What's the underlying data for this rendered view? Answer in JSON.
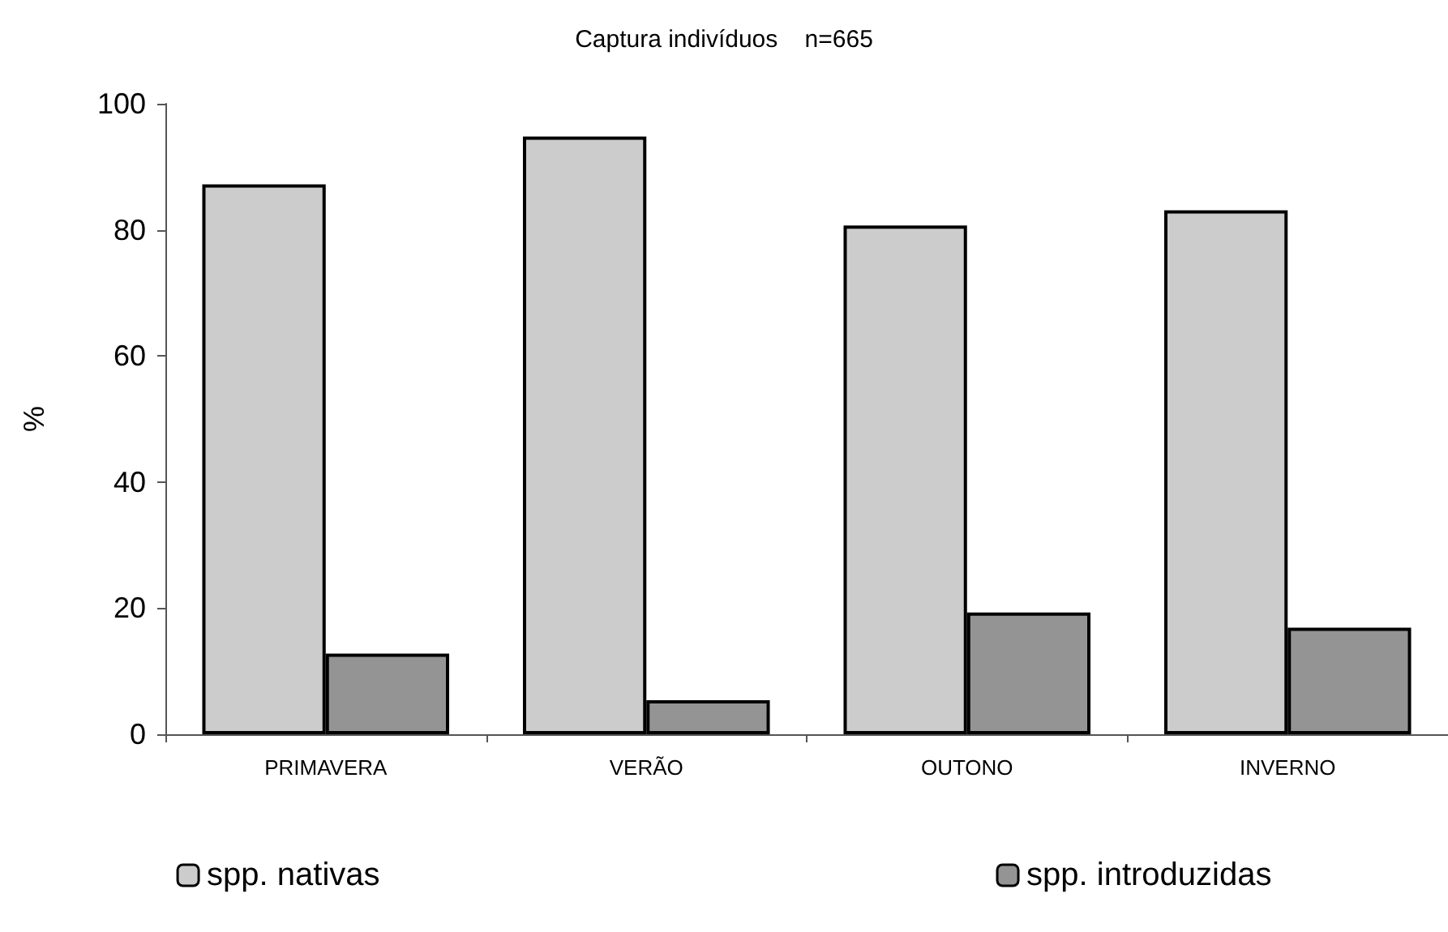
{
  "chart_data": {
    "type": "bar",
    "title": "Captura indivíduos    n=665",
    "ylabel": "%",
    "categories": [
      "PRIMAVERA",
      "VERÃO",
      "OUTONO",
      "INVERNO"
    ],
    "series": [
      {
        "name": "spp. nativas",
        "color": "#cccccc",
        "values": [
          87.2,
          94.8,
          80.7,
          83.1
        ]
      },
      {
        "name": "spp. introduzidas",
        "color": "#949494",
        "values": [
          12.8,
          5.4,
          19.3,
          16.9
        ]
      }
    ],
    "ylim": [
      0,
      100
    ],
    "yticks": [
      0,
      20,
      40,
      60,
      80,
      100
    ],
    "grid": false,
    "legend": "bottom"
  }
}
